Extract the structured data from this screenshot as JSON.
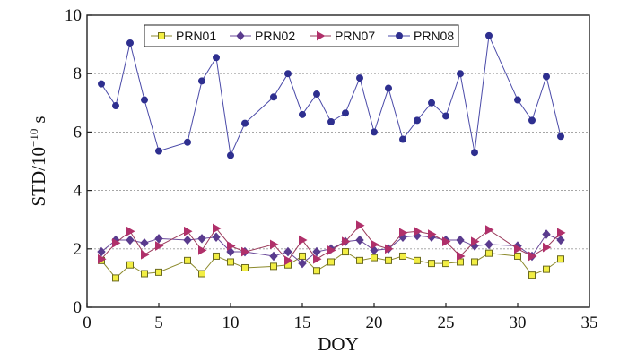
{
  "chart_data": {
    "type": "line",
    "xlabel": "DOY",
    "ylabel": "STD/10",
    "ylabel_exponent": "−10",
    "ylabel_unit": "s",
    "xlim": [
      0,
      35
    ],
    "ylim": [
      0,
      10
    ],
    "xticks": [
      "0",
      "5",
      "10",
      "15",
      "20",
      "25",
      "30",
      "35"
    ],
    "yticks": [
      "0",
      "2",
      "4",
      "6",
      "8",
      "10"
    ],
    "grid": "horizontal dotted",
    "legend_position": "top-left",
    "series": [
      {
        "name": "PRN01",
        "color": "#8c8a2c",
        "marker": "square",
        "marker_color": "#f2ee43",
        "x": [
          1,
          2,
          3,
          4,
          5,
          7,
          8,
          9,
          10,
          11,
          13,
          14,
          15,
          16,
          17,
          18,
          19,
          20,
          21,
          22,
          23,
          24,
          25,
          26,
          27,
          28,
          30,
          31,
          32,
          33
        ],
        "y": [
          1.6,
          1.0,
          1.45,
          1.15,
          1.2,
          1.6,
          1.15,
          1.75,
          1.55,
          1.35,
          1.4,
          1.45,
          1.75,
          1.25,
          1.55,
          1.9,
          1.6,
          1.7,
          1.6,
          1.75,
          1.6,
          1.5,
          1.5,
          1.55,
          1.55,
          1.85,
          1.75,
          1.1,
          1.3,
          1.65
        ]
      },
      {
        "name": "PRN02",
        "color": "#6b4a9a",
        "marker": "diamond",
        "marker_color": "#5a3b8e",
        "x": [
          1,
          2,
          3,
          4,
          5,
          7,
          8,
          9,
          10,
          11,
          13,
          14,
          15,
          16,
          17,
          18,
          19,
          20,
          21,
          22,
          23,
          24,
          25,
          26,
          27,
          28,
          30,
          31,
          32,
          33
        ],
        "y": [
          1.9,
          2.3,
          2.3,
          2.2,
          2.35,
          2.3,
          2.35,
          2.4,
          1.9,
          1.9,
          1.75,
          1.9,
          1.5,
          1.9,
          2.0,
          2.25,
          2.3,
          1.95,
          2.0,
          2.4,
          2.45,
          2.4,
          2.3,
          2.3,
          2.1,
          2.15,
          2.1,
          1.75,
          2.5,
          2.3
        ]
      },
      {
        "name": "PRN07",
        "color": "#9a3a5a",
        "marker": "triangle-right",
        "marker_color": "#b0306a",
        "x": [
          1,
          2,
          3,
          4,
          5,
          7,
          8,
          9,
          10,
          11,
          13,
          14,
          15,
          16,
          17,
          18,
          19,
          20,
          21,
          22,
          23,
          24,
          25,
          26,
          27,
          28,
          30,
          31,
          32,
          33
        ],
        "y": [
          1.65,
          2.2,
          2.6,
          1.8,
          2.1,
          2.6,
          1.95,
          2.7,
          2.1,
          1.9,
          2.15,
          1.6,
          2.3,
          1.65,
          1.95,
          2.25,
          2.8,
          2.15,
          2.0,
          2.55,
          2.6,
          2.5,
          2.25,
          1.75,
          2.25,
          2.65,
          2.0,
          1.75,
          2.05,
          2.55
        ]
      },
      {
        "name": "PRN08",
        "color": "#4a4aa8",
        "marker": "circle",
        "marker_color": "#2e2f8f",
        "x": [
          1,
          2,
          3,
          4,
          5,
          7,
          8,
          9,
          10,
          11,
          13,
          14,
          15,
          16,
          17,
          18,
          19,
          20,
          21,
          22,
          23,
          24,
          25,
          26,
          27,
          28,
          30,
          31,
          32,
          33
        ],
        "y": [
          7.65,
          6.9,
          9.05,
          7.1,
          5.35,
          5.65,
          7.75,
          8.55,
          5.2,
          6.3,
          7.2,
          8.0,
          6.6,
          7.3,
          6.35,
          6.65,
          7.85,
          6.0,
          7.5,
          5.75,
          6.4,
          7.0,
          6.55,
          8.0,
          5.3,
          9.3,
          7.1,
          6.4,
          7.9,
          5.85
        ]
      }
    ]
  }
}
